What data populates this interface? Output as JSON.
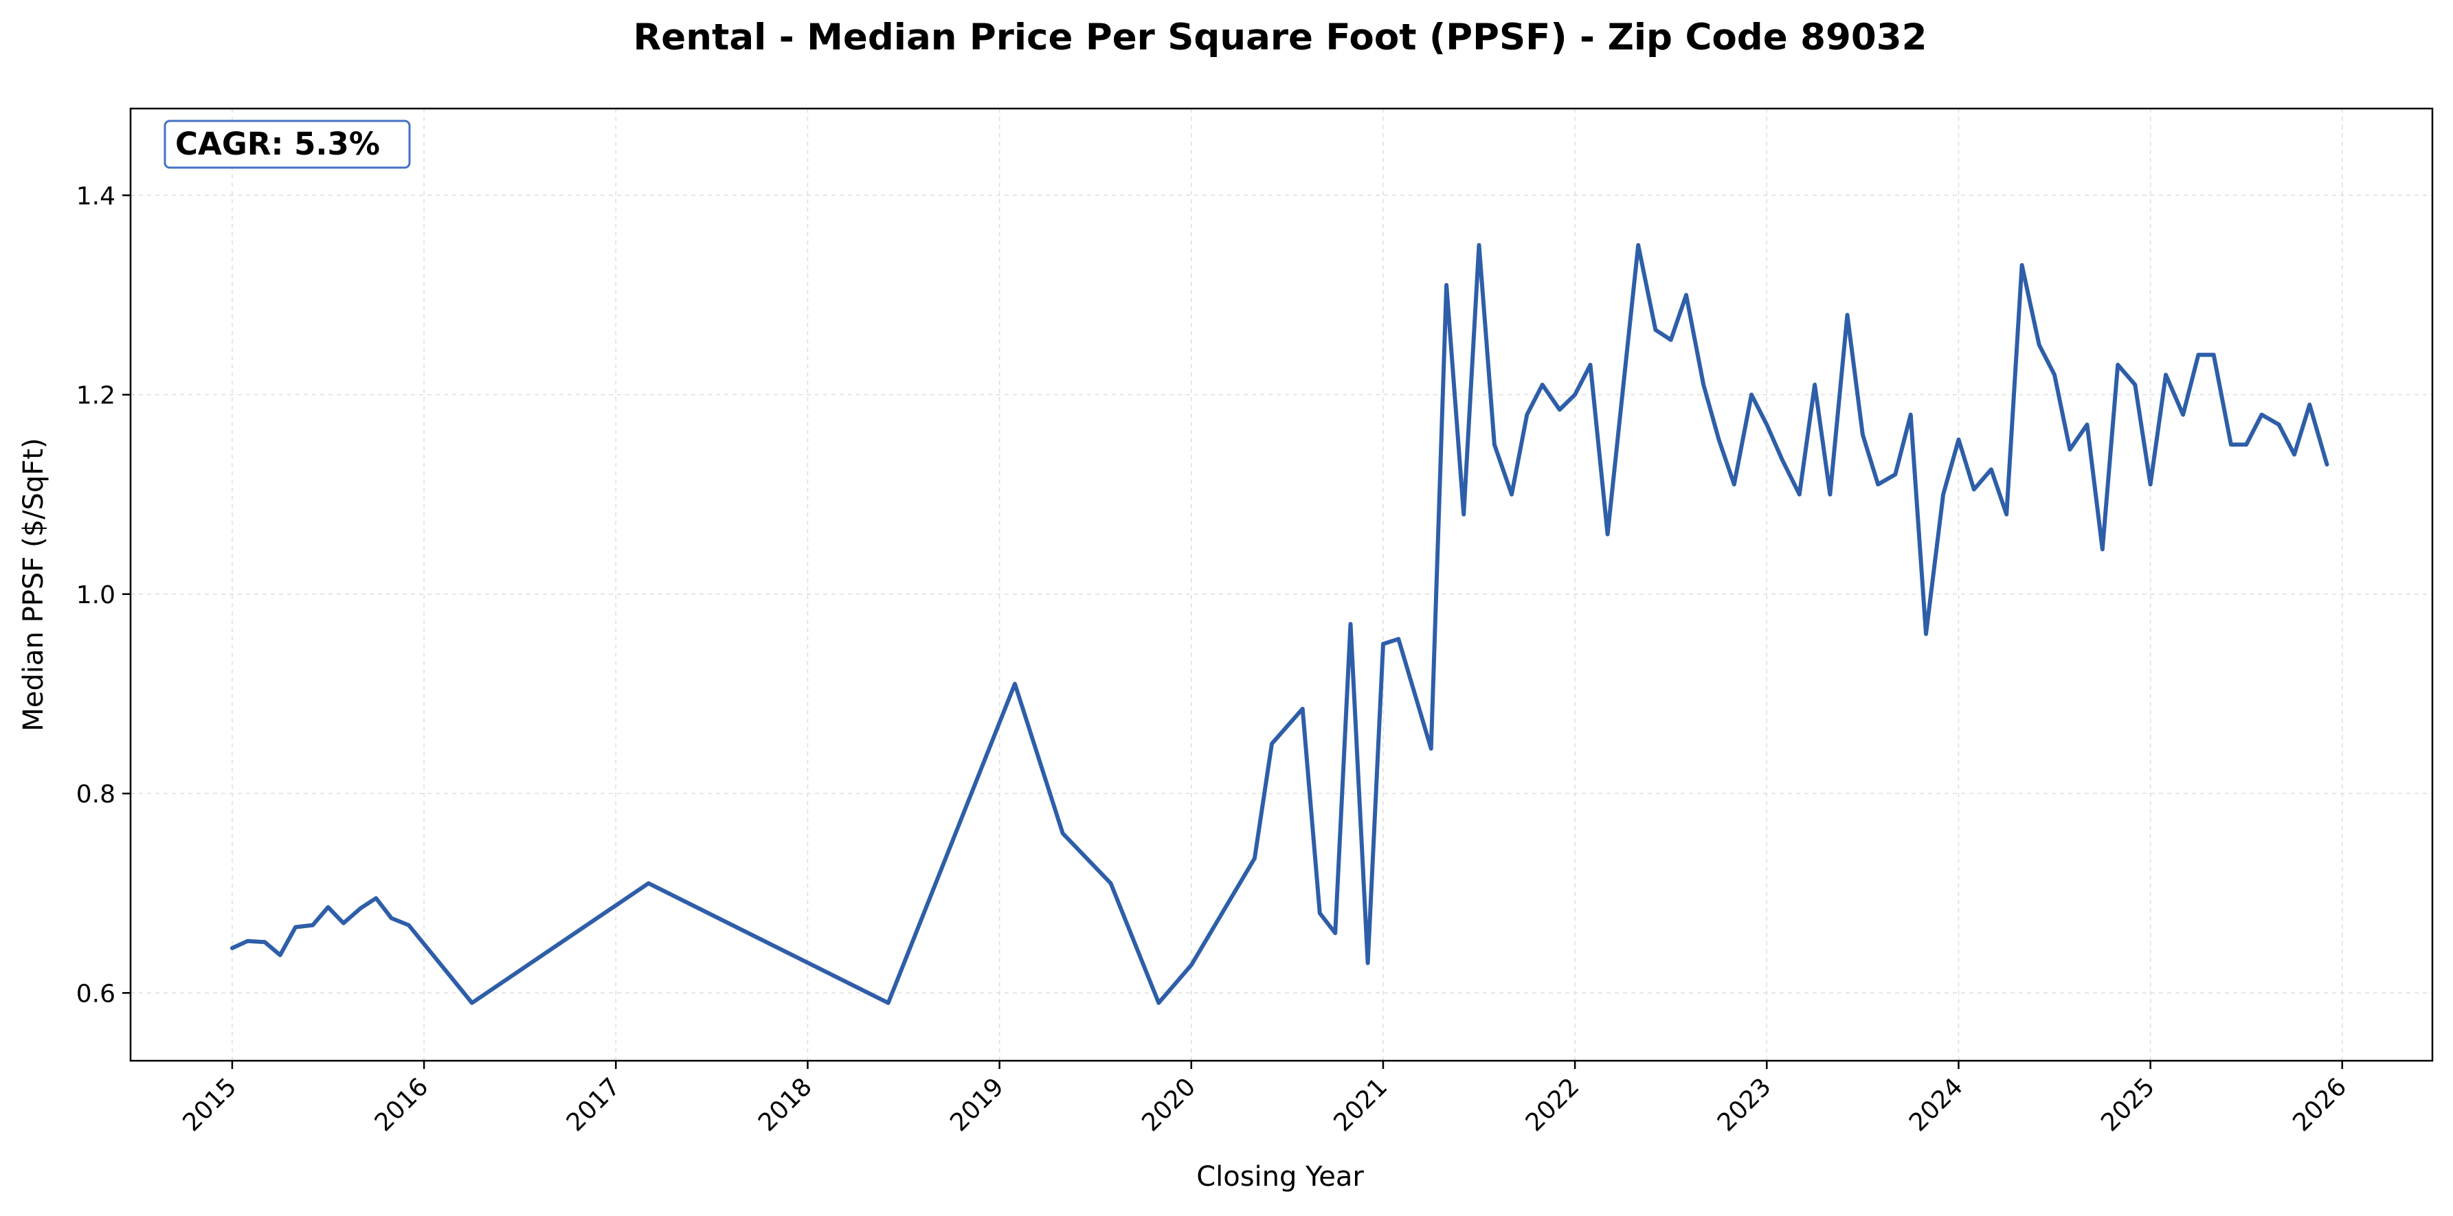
{
  "chart_data": {
    "type": "line",
    "title": "Rental - Median Price Per Square Foot (PPSF) - Zip Code 89032",
    "xlabel": "Closing Year",
    "ylabel": "Median PPSF ($/SqFt)",
    "annotation": "CAGR: 5.3%",
    "color": "#2E5EA8",
    "grid": true,
    "xlim": [
      2014.47,
      2026.47
    ],
    "ylim": [
      0.532,
      1.487
    ],
    "x_ticks": [
      2015,
      2016,
      2017,
      2018,
      2019,
      2020,
      2021,
      2022,
      2023,
      2024,
      2025,
      2026
    ],
    "x_tick_labels": [
      "2015",
      "2016",
      "2017",
      "2018",
      "2019",
      "2020",
      "2021",
      "2022",
      "2023",
      "2024",
      "2025",
      "2026"
    ],
    "y_ticks": [
      0.6,
      0.8,
      1.0,
      1.2,
      1.4
    ],
    "y_tick_labels": [
      "0.6",
      "0.8",
      "1.0",
      "1.2",
      "1.4"
    ],
    "series": [
      {
        "x": [
          2015.0,
          2015.08,
          2015.17,
          2015.25,
          2015.33,
          2015.42,
          2015.5,
          2015.58,
          2015.67,
          2015.75,
          2015.83,
          2015.92,
          2016.25,
          2017.17,
          2018.42,
          2019.08,
          2019.33,
          2019.58,
          2019.83,
          2020.0,
          2020.33,
          2020.42,
          2020.58,
          2020.67,
          2020.75,
          2020.83,
          2020.92,
          2021.0,
          2021.08,
          2021.25,
          2021.33,
          2021.42,
          2021.5,
          2021.58,
          2021.67,
          2021.75,
          2021.83,
          2021.92,
          2022.0,
          2022.08,
          2022.17,
          2022.33,
          2022.42,
          2022.5,
          2022.58,
          2022.67,
          2022.75,
          2022.83,
          2022.92,
          2023.0,
          2023.08,
          2023.17,
          2023.25,
          2023.33,
          2023.42,
          2023.5,
          2023.58,
          2023.67,
          2023.75,
          2023.83,
          2023.92,
          2024.0,
          2024.08,
          2024.17,
          2024.25,
          2024.33,
          2024.42,
          2024.5,
          2024.58,
          2024.67,
          2024.75,
          2024.83,
          2024.92,
          2025.0,
          2025.08,
          2025.17,
          2025.25,
          2025.33,
          2025.42,
          2025.5,
          2025.58,
          2025.67,
          2025.75,
          2025.83,
          2025.92
        ],
        "y": [
          0.645,
          0.652,
          0.651,
          0.638,
          0.666,
          0.668,
          0.686,
          0.67,
          0.685,
          0.695,
          0.675,
          0.668,
          0.59,
          0.71,
          0.59,
          0.91,
          0.76,
          0.71,
          0.59,
          0.628,
          0.735,
          0.85,
          0.885,
          0.68,
          0.66,
          0.97,
          0.63,
          0.95,
          0.955,
          0.845,
          1.31,
          1.08,
          1.35,
          1.15,
          1.1,
          1.18,
          1.21,
          1.185,
          1.2,
          1.23,
          1.06,
          1.35,
          1.265,
          1.255,
          1.3,
          1.21,
          1.155,
          1.11,
          1.2,
          1.17,
          1.135,
          1.1,
          1.21,
          1.1,
          1.28,
          1.16,
          1.11,
          1.12,
          1.18,
          0.96,
          1.1,
          1.155,
          1.105,
          1.125,
          1.08,
          1.33,
          1.25,
          1.22,
          1.145,
          1.17,
          1.045,
          1.23,
          1.21,
          1.11,
          1.22,
          1.18,
          1.24,
          1.24,
          1.15,
          1.15,
          1.18,
          1.17,
          1.14,
          1.19,
          1.13
        ]
      }
    ]
  }
}
